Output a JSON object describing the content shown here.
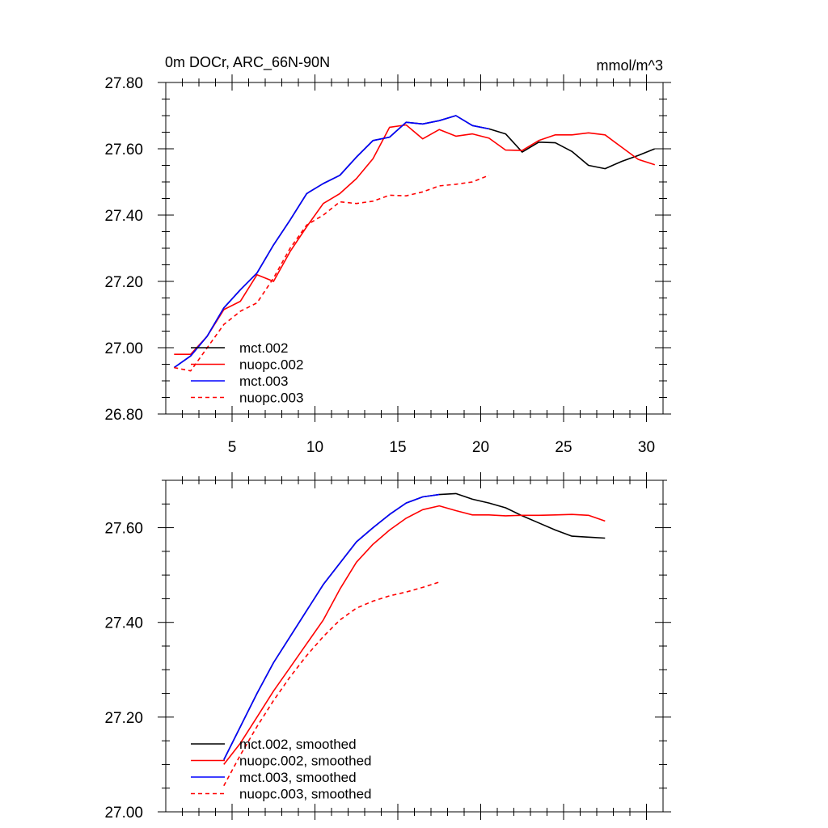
{
  "figure": {
    "title": "0m DOCr, ARC_66N-90N",
    "units": "mmol/m^3"
  },
  "chart_data": [
    {
      "type": "line",
      "title": "0m DOCr, ARC_66N-90N",
      "units": "mmol/m^3",
      "xlabel": "",
      "ylabel": "",
      "xlim": [
        1,
        31
      ],
      "ylim": [
        26.8,
        27.8
      ],
      "x_ticks": [
        5,
        10,
        15,
        20,
        25,
        30
      ],
      "x_tick_labels": [
        "5",
        "10",
        "15",
        "20",
        "25",
        "30"
      ],
      "y_ticks": [
        26.8,
        27.0,
        27.2,
        27.4,
        27.6,
        27.8
      ],
      "y_tick_labels": [
        "26.80",
        "27.00",
        "27.20",
        "27.40",
        "27.60",
        "27.80"
      ],
      "grid": false,
      "legend_position": "bottom-left",
      "series": [
        {
          "name": "mct.002",
          "color": "#000000",
          "dash": "solid",
          "x": [
            1.5,
            2.5,
            3.5,
            4.5,
            5.5,
            6.5,
            7.5,
            8.5,
            9.5,
            10.5,
            11.5,
            12.5,
            13.5,
            14.5,
            15.5,
            16.5,
            17.5,
            18.5,
            19.5,
            20.5,
            21.5,
            22.5,
            23.5,
            24.5,
            25.5,
            26.5,
            27.5,
            28.5,
            29.5,
            30.5
          ],
          "y": [
            26.94,
            26.975,
            27.035,
            27.12,
            27.175,
            27.225,
            27.31,
            27.385,
            27.465,
            27.495,
            27.52,
            27.575,
            27.625,
            27.635,
            27.68,
            27.675,
            27.685,
            27.7,
            27.67,
            27.66,
            27.645,
            27.59,
            27.62,
            27.618,
            27.592,
            27.55,
            27.54,
            27.562,
            27.58,
            27.6
          ]
        },
        {
          "name": "nuopc.002",
          "color": "#ff0000",
          "dash": "solid",
          "x": [
            1.5,
            2.5,
            3.5,
            4.5,
            5.5,
            6.5,
            7.5,
            8.5,
            9.5,
            10.5,
            11.5,
            12.5,
            13.5,
            14.5,
            15.5,
            16.5,
            17.5,
            18.5,
            19.5,
            20.5,
            21.5,
            22.5,
            23.5,
            24.5,
            25.5,
            26.5,
            27.5,
            28.5,
            29.5,
            30.5
          ],
          "y": [
            26.98,
            26.98,
            27.035,
            27.115,
            27.14,
            27.22,
            27.2,
            27.29,
            27.365,
            27.435,
            27.465,
            27.51,
            27.57,
            27.665,
            27.672,
            27.63,
            27.658,
            27.638,
            27.645,
            27.632,
            27.596,
            27.595,
            27.625,
            27.642,
            27.642,
            27.648,
            27.642,
            27.605,
            27.568,
            27.552
          ]
        },
        {
          "name": "mct.003",
          "color": "#0000ff",
          "dash": "solid",
          "x": [
            1.5,
            2.5,
            3.5,
            4.5,
            5.5,
            6.5,
            7.5,
            8.5,
            9.5,
            10.5,
            11.5,
            12.5,
            13.5,
            14.5,
            15.5,
            16.5,
            17.5,
            18.5,
            19.5,
            20.5
          ],
          "y": [
            26.94,
            26.975,
            27.035,
            27.12,
            27.175,
            27.225,
            27.31,
            27.385,
            27.465,
            27.495,
            27.52,
            27.575,
            27.625,
            27.635,
            27.68,
            27.675,
            27.685,
            27.7,
            27.67,
            27.66
          ]
        },
        {
          "name": "nuopc.003",
          "color": "#ff0000",
          "dash": "dashed",
          "x": [
            1.5,
            2.5,
            3.5,
            4.5,
            5.5,
            6.5,
            7.5,
            8.5,
            9.5,
            10.5,
            11.5,
            12.5,
            13.5,
            14.5,
            15.5,
            16.5,
            17.5,
            18.5,
            19.5,
            20.5
          ],
          "y": [
            26.94,
            26.93,
            27.0,
            27.07,
            27.11,
            27.135,
            27.21,
            27.3,
            27.37,
            27.4,
            27.44,
            27.435,
            27.442,
            27.46,
            27.458,
            27.47,
            27.488,
            27.493,
            27.5,
            27.52
          ]
        }
      ]
    },
    {
      "type": "line",
      "title": "",
      "xlabel": "",
      "ylabel": "",
      "xlim": [
        1,
        31
      ],
      "ylim": [
        27.0,
        27.7
      ],
      "x_ticks": [
        5,
        10,
        15,
        20,
        25,
        30
      ],
      "y_ticks": [
        27.0,
        27.2,
        27.4,
        27.6
      ],
      "y_tick_labels": [
        "27.00",
        "27.20",
        "27.40",
        "27.60"
      ],
      "grid": false,
      "legend_position": "bottom-left",
      "series": [
        {
          "name": "mct.002, smoothed",
          "color": "#000000",
          "dash": "solid",
          "x": [
            4.5,
            5.5,
            6.5,
            7.5,
            8.5,
            9.5,
            10.5,
            11.5,
            12.5,
            13.5,
            14.5,
            15.5,
            16.5,
            17.5,
            18.5,
            19.5,
            20.5,
            21.5,
            22.5,
            23.5,
            24.5,
            25.5,
            26.5,
            27.5
          ],
          "y": [
            27.11,
            27.18,
            27.25,
            27.315,
            27.37,
            27.425,
            27.48,
            27.525,
            27.57,
            27.6,
            27.628,
            27.652,
            27.665,
            27.67,
            27.672,
            27.66,
            27.652,
            27.642,
            27.625,
            27.61,
            27.595,
            27.582,
            27.58,
            27.578
          ]
        },
        {
          "name": "nuopc.002, smoothed",
          "color": "#ff0000",
          "dash": "solid",
          "x": [
            4.5,
            5.5,
            6.5,
            7.5,
            8.5,
            9.5,
            10.5,
            11.5,
            12.5,
            13.5,
            14.5,
            15.5,
            16.5,
            17.5,
            18.5,
            19.5,
            20.5,
            21.5,
            22.5,
            23.5,
            24.5,
            25.5,
            26.5,
            27.5
          ],
          "y": [
            27.1,
            27.145,
            27.2,
            27.255,
            27.305,
            27.355,
            27.405,
            27.47,
            27.527,
            27.565,
            27.595,
            27.62,
            27.638,
            27.646,
            27.636,
            27.627,
            27.627,
            27.625,
            27.626,
            27.626,
            27.627,
            27.628,
            27.626,
            27.614
          ]
        },
        {
          "name": "mct.003, smoothed",
          "color": "#0000ff",
          "dash": "solid",
          "x": [
            4.5,
            5.5,
            6.5,
            7.5,
            8.5,
            9.5,
            10.5,
            11.5,
            12.5,
            13.5,
            14.5,
            15.5,
            16.5,
            17.5
          ],
          "y": [
            27.11,
            27.18,
            27.25,
            27.315,
            27.37,
            27.425,
            27.48,
            27.525,
            27.57,
            27.6,
            27.628,
            27.652,
            27.665,
            27.67
          ]
        },
        {
          "name": "nuopc.003, smoothed",
          "color": "#ff0000",
          "dash": "dashed",
          "x": [
            4.5,
            5.5,
            6.5,
            7.5,
            8.5,
            9.5,
            10.5,
            11.5,
            12.5,
            13.5,
            14.5,
            15.5,
            16.5,
            17.5
          ],
          "y": [
            27.055,
            27.12,
            27.18,
            27.235,
            27.285,
            27.33,
            27.37,
            27.405,
            27.43,
            27.445,
            27.456,
            27.464,
            27.474,
            27.485
          ]
        }
      ]
    }
  ]
}
